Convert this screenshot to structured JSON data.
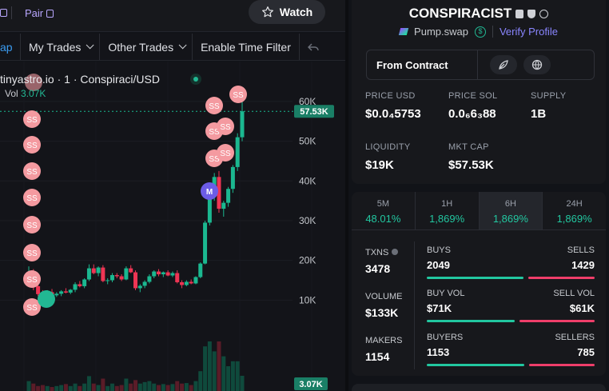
{
  "topbar": {
    "left_fragment": "",
    "pair_label": "Pair",
    "watch_label": "Watch"
  },
  "toolbar": {
    "swap_fragment": "ap",
    "my_trades": "My Trades",
    "other_trades": "Other Trades",
    "time_filter": "Enable Time Filter"
  },
  "chart": {
    "title": "tinyastro.io · 1 · Conspiraci/USD",
    "vol_label": "Vol",
    "vol_value": "3.07K",
    "price_badge": "57.53K",
    "vol_badge": "3.07K",
    "marker_label": "SS",
    "m_marker": "M",
    "colors": {
      "up": "#1bb890",
      "down": "#ee3554",
      "marker": "#f49aa0",
      "m_marker": "#6c5ce7"
    }
  },
  "chart_data": {
    "type": "candlestick",
    "y_ticks": [
      "60K",
      "50K",
      "40K",
      "30K",
      "20K",
      "10K"
    ],
    "ylim": [
      0,
      62000
    ],
    "current_price": 57530,
    "candles": [
      [
        16500,
        18500,
        14500,
        17000
      ],
      [
        17000,
        17800,
        12500,
        13500
      ],
      [
        13500,
        14500,
        11000,
        11500
      ],
      [
        11500,
        12500,
        10500,
        11000
      ],
      [
        11000,
        12500,
        10500,
        12000
      ],
      [
        12000,
        12800,
        10800,
        11200
      ],
      [
        11200,
        12000,
        10800,
        11600
      ],
      [
        11600,
        12500,
        11000,
        12200
      ],
      [
        12200,
        13000,
        11700,
        11900
      ],
      [
        11900,
        12800,
        11500,
        12600
      ],
      [
        12600,
        14500,
        12000,
        14000
      ],
      [
        14000,
        14800,
        13200,
        13500
      ],
      [
        13500,
        15500,
        13000,
        15200
      ],
      [
        15200,
        19000,
        14800,
        18000
      ],
      [
        18000,
        19000,
        16500,
        16800
      ],
      [
        16800,
        18500,
        16000,
        18200
      ],
      [
        18200,
        18800,
        14500,
        14800
      ],
      [
        14800,
        15500,
        14000,
        15000
      ],
      [
        15000,
        16800,
        14500,
        16300
      ],
      [
        16300,
        16800,
        15500,
        16000
      ],
      [
        16000,
        16500,
        14800,
        15200
      ],
      [
        15200,
        18500,
        15000,
        18000
      ],
      [
        18000,
        18800,
        16800,
        17000
      ],
      [
        17000,
        17500,
        12500,
        13000
      ],
      [
        13000,
        14000,
        12000,
        13600
      ],
      [
        13600,
        15000,
        13000,
        14600
      ],
      [
        14600,
        16500,
        14200,
        16000
      ],
      [
        16000,
        17500,
        15500,
        17200
      ],
      [
        17200,
        17800,
        16000,
        16500
      ],
      [
        16500,
        17200,
        15800,
        17000
      ],
      [
        17000,
        17500,
        16000,
        16200
      ],
      [
        16200,
        17200,
        15800,
        16800
      ],
      [
        16800,
        17500,
        14200,
        14500
      ],
      [
        14500,
        15000,
        13000,
        13800
      ],
      [
        13800,
        15000,
        13500,
        14600
      ],
      [
        14600,
        15200,
        14000,
        14200
      ],
      [
        14200,
        16000,
        14000,
        15800
      ],
      [
        15800,
        19500,
        15500,
        19200
      ],
      [
        19200,
        30000,
        19000,
        29500
      ],
      [
        29500,
        38000,
        28800,
        37000
      ],
      [
        37000,
        42000,
        35000,
        41000
      ],
      [
        41000,
        42500,
        32000,
        33000
      ],
      [
        33000,
        35000,
        31000,
        34500
      ],
      [
        34500,
        38500,
        33500,
        38000
      ],
      [
        38000,
        44000,
        37000,
        43500
      ],
      [
        43500,
        52000,
        42500,
        51000
      ],
      [
        51000,
        60000,
        50000,
        57530
      ]
    ],
    "volumes": [
      2,
      1.5,
      1,
      1.2,
      1,
      0.8,
      1,
      1.2,
      1.4,
      1,
      1.5,
      1,
      1.5,
      3,
      1.5,
      1.2,
      2.5,
      1,
      1.5,
      1,
      1.2,
      2.5,
      1.5,
      2.2,
      1.5,
      1.8,
      2,
      1.5,
      1.2,
      1.4,
      1.2,
      1.4,
      2,
      1.5,
      1.6,
      1.2,
      2,
      4,
      9,
      10,
      8,
      10,
      7,
      5,
      6,
      6,
      3.07
    ]
  },
  "token": {
    "name": "CONSPIRACIST",
    "dex": "Pump.swap",
    "verify": "Verify Profile",
    "from_contract": "From Contract",
    "stats": [
      {
        "label": "PRICE USD",
        "value": "$0.0₄5753"
      },
      {
        "label": "PRICE SOL",
        "value": "0.0₆6₃88"
      },
      {
        "label": "SUPPLY",
        "value": "1B"
      },
      {
        "label": "LIQUIDITY",
        "value": "$19K"
      },
      {
        "label": "MKT CAP",
        "value": "$57.53K"
      }
    ]
  },
  "timeframes": [
    {
      "label": "5M",
      "value": "48.01%"
    },
    {
      "label": "1H",
      "value": "1,869%"
    },
    {
      "label": "6H",
      "value": "1,869%"
    },
    {
      "label": "24H",
      "value": "1,869%"
    }
  ],
  "txstats": {
    "txns_label": "TXNS",
    "txns": "3478",
    "volume_label": "VOLUME",
    "volume": "$133K",
    "makers_label": "MAKERS",
    "makers": "1154",
    "buys_label": "BUYS",
    "buys": "2049",
    "sells_label": "SELLS",
    "sells": "1429",
    "buyvol_label": "BUY VOL",
    "buyvol": "$71K",
    "sellvol_label": "SELL VOL",
    "sellvol": "$61K",
    "buyers_label": "BUYERS",
    "buyers": "1153",
    "sellers_label": "SELLERS",
    "sellers": "785",
    "buy_fraction": 0.589,
    "vol_fraction": 0.538,
    "buyer_fraction": 0.595
  }
}
